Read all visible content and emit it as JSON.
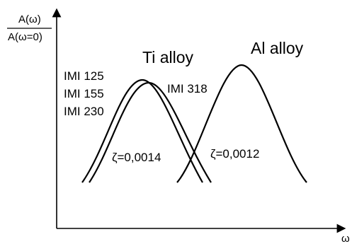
{
  "y_axis_label": {
    "numerator": "A(ω)",
    "denominator": "A(ω=0)"
  },
  "x_axis_label": "ω",
  "group_labels": {
    "ti": "Ti alloy",
    "al": "Al alloy"
  },
  "ti_curve_labels": [
    "IMI 125",
    "IMI 155",
    "IMI 230"
  ],
  "al_curve_label": "IMI 318",
  "damping_labels": {
    "ti": "ζ=0,0014",
    "al": "ζ=0,0012"
  },
  "colors": {
    "ink": "#000000",
    "background": "#ffffff"
  }
}
